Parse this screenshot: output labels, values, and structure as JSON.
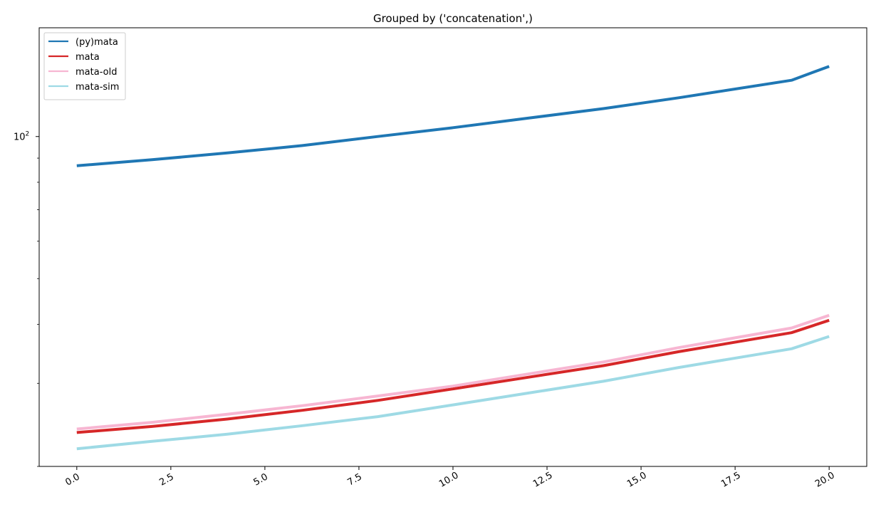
{
  "chart_data": {
    "type": "line",
    "title": "Grouped by ('concatenation',)",
    "xlabel": "",
    "ylabel": "",
    "yscale": "log",
    "xlim": [
      -1,
      21
    ],
    "ylim": [
      20,
      170
    ],
    "x_ticks": [
      {
        "value": 0.0,
        "label": "0.0"
      },
      {
        "value": 2.5,
        "label": "2.5"
      },
      {
        "value": 5.0,
        "label": "5.0"
      },
      {
        "value": 7.5,
        "label": "7.5"
      },
      {
        "value": 10.0,
        "label": "10.0"
      },
      {
        "value": 12.5,
        "label": "12.5"
      },
      {
        "value": 15.0,
        "label": "15.0"
      },
      {
        "value": 17.5,
        "label": "17.5"
      },
      {
        "value": 20.0,
        "label": "20.0"
      }
    ],
    "y_major_ticks": [
      {
        "value": 100,
        "base": "10",
        "exponent": "2"
      }
    ],
    "y_minor_ticks": [
      20,
      30,
      40,
      50,
      60,
      70,
      80,
      90
    ],
    "legend_position": "upper-left",
    "grid": false,
    "series": [
      {
        "name": "(py)mata",
        "color": "#1f77b4",
        "x": [
          0,
          2,
          4,
          6,
          8,
          10,
          12,
          14,
          16,
          19,
          20
        ],
        "y": [
          86.7,
          89.3,
          92.3,
          95.7,
          100.0,
          104.4,
          109.4,
          114.6,
          120.8,
          131.6,
          140.8
        ]
      },
      {
        "name": "mata",
        "color": "#d62728",
        "x": [
          0,
          2,
          4,
          6,
          8,
          10,
          12,
          14,
          16,
          19,
          20
        ],
        "y": [
          23.6,
          24.3,
          25.2,
          26.3,
          27.6,
          29.2,
          30.9,
          32.7,
          35.0,
          38.4,
          40.8
        ]
      },
      {
        "name": "mata-old",
        "color": "#f7b6d2",
        "x": [
          0,
          2,
          4,
          6,
          8,
          10,
          12,
          14,
          16,
          19,
          20
        ],
        "y": [
          24.0,
          24.8,
          25.8,
          26.9,
          28.2,
          29.6,
          31.4,
          33.3,
          35.7,
          39.3,
          41.8
        ]
      },
      {
        "name": "mata-sim",
        "color": "#9edae5",
        "x": [
          0,
          2,
          4,
          6,
          8,
          10,
          12,
          14,
          16,
          19,
          20
        ],
        "y": [
          21.8,
          22.6,
          23.4,
          24.4,
          25.5,
          27.0,
          28.6,
          30.3,
          32.4,
          35.5,
          37.7
        ]
      }
    ]
  }
}
